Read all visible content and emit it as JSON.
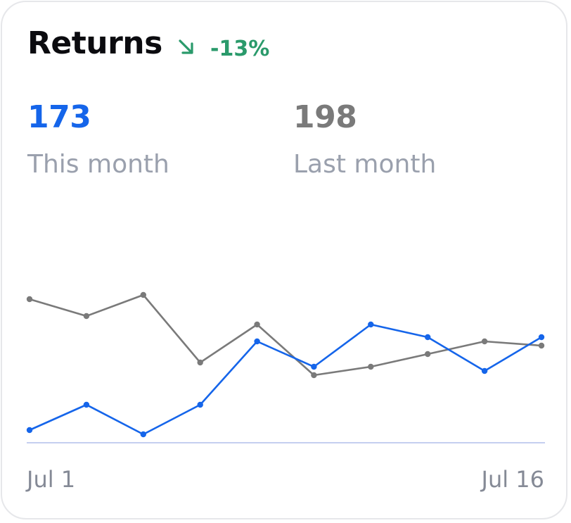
{
  "header": {
    "title": "Returns",
    "trend_icon": "arrow-down-right-icon",
    "trend_text": "-13%",
    "trend_color": "#2a9a6b"
  },
  "metrics": [
    {
      "value": "173",
      "label": "This month",
      "color": "#1565ea"
    },
    {
      "value": "198",
      "label": "Last month",
      "color": "#7a7a7a"
    }
  ],
  "chart_data": {
    "type": "line",
    "x": [
      1,
      2,
      3,
      4,
      5,
      6,
      7,
      8,
      9,
      10
    ],
    "x_tick_labels": [
      "Jul 1",
      "Jul 16"
    ],
    "series": [
      {
        "values": [
          34,
          30,
          35,
          19,
          28,
          16,
          18,
          21,
          24,
          23
        ],
        "color": "#7a7a7a"
      },
      {
        "values": [
          3,
          9,
          2,
          9,
          24,
          18,
          28,
          25,
          17,
          25
        ],
        "color": "#1565ea"
      }
    ],
    "baseline_color": "#c5cff0",
    "ylim": [
      0,
      50
    ],
    "grid": false,
    "legend": "none"
  }
}
